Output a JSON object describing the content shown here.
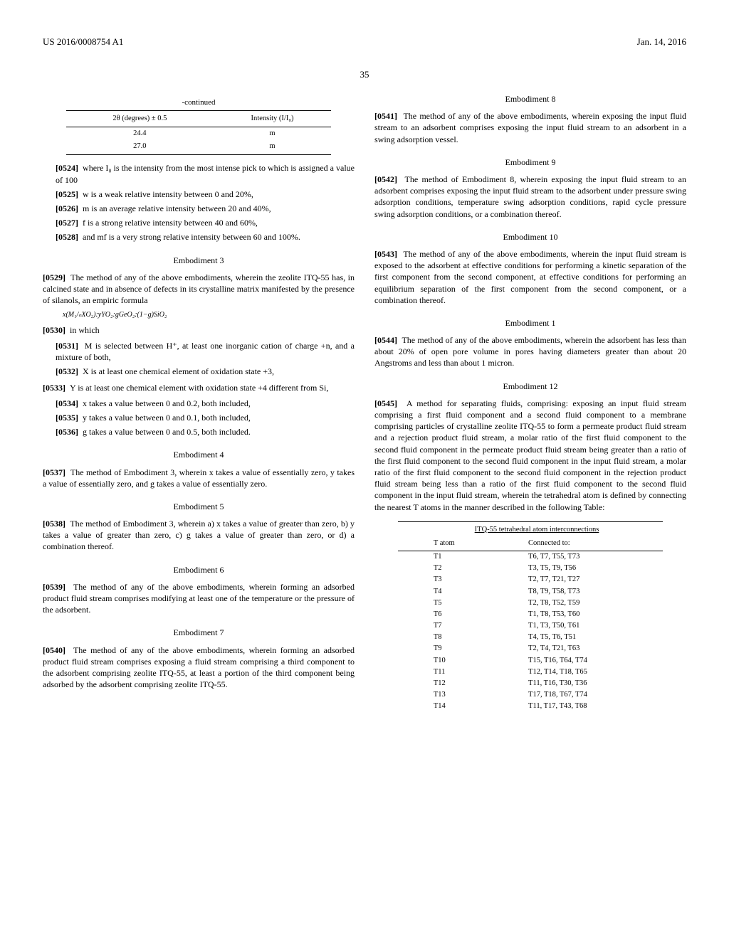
{
  "header": {
    "pub_number": "US 2016/0008754 A1",
    "date": "Jan. 14, 2016"
  },
  "page_number": "35",
  "left": {
    "continued_table": {
      "caption": "-continued",
      "headers": [
        "2θ (degrees) ± 0.5",
        "Intensity (I/I₀)"
      ],
      "rows": [
        [
          "24.4",
          "m"
        ],
        [
          "27.0",
          "m"
        ]
      ]
    },
    "p0524": {
      "num": "[0524]",
      "text": "where I₀ is the intensity from the most intense pick to which is assigned a value of 100"
    },
    "p0525": {
      "num": "[0525]",
      "text": "w is a weak relative intensity between 0 and 20%,"
    },
    "p0526": {
      "num": "[0526]",
      "text": "m is an average relative intensity between 20 and 40%,"
    },
    "p0527": {
      "num": "[0527]",
      "text": "f is a strong relative intensity between 40 and 60%,"
    },
    "p0528": {
      "num": "[0528]",
      "text": "and mf is a very strong relative intensity between 60 and 100%."
    },
    "emb3": "Embodiment 3",
    "p0529": {
      "num": "[0529]",
      "text": "The method of any of the above embodiments, wherein the zeolite ITQ-55 has, in calcined state and in absence of defects in its crystalline matrix manifested by the presence of silanols, an empiric formula"
    },
    "formula": "x(M₁/ₙXO₂):yYO₂:gGeO₂:(1−g)SiO₂",
    "p0530": {
      "num": "[0530]",
      "text": "in which"
    },
    "p0531": {
      "num": "[0531]",
      "text": "M is selected between H⁺, at least one inorganic cation of charge +n, and a mixture of both,"
    },
    "p0532": {
      "num": "[0532]",
      "text": "X is at least one chemical element of oxidation state +3,"
    },
    "p0533": {
      "num": "[0533]",
      "text": "Y is at least one chemical element with oxidation state +4 different from Si,"
    },
    "p0534": {
      "num": "[0534]",
      "text": "x takes a value between 0 and 0.2, both included,"
    },
    "p0535": {
      "num": "[0535]",
      "text": "y takes a value between 0 and 0.1, both included,"
    },
    "p0536": {
      "num": "[0536]",
      "text": "g takes a value between 0 and 0.5, both included."
    },
    "emb4": "Embodiment 4",
    "p0537": {
      "num": "[0537]",
      "text": "The method of Embodiment 3, wherein x takes a value of essentially zero, y takes a value of essentially zero, and g takes a value of essentially zero."
    },
    "emb5": "Embodiment 5",
    "p0538": {
      "num": "[0538]",
      "text": "The method of Embodiment 3, wherein a) x takes a value of greater than zero, b) y takes a value of greater than zero, c) g takes a value of greater than zero, or d) a combination thereof."
    },
    "emb6": "Embodiment 6",
    "p0539": {
      "num": "[0539]",
      "text": "The method of any of the above embodiments, wherein forming an adsorbed product fluid stream comprises modifying at least one of the temperature or the pressure of the adsorbent."
    },
    "emb7": "Embodiment 7",
    "p0540": {
      "num": "[0540]",
      "text": "The method of any of the above embodiments, wherein forming an adsorbed product fluid stream comprises exposing a fluid stream comprising a third component to the adsorbent comprising zeolite ITQ-55, at least a portion of the third component being adsorbed by the adsorbent comprising zeolite ITQ-55."
    }
  },
  "right": {
    "emb8": "Embodiment 8",
    "p0541": {
      "num": "[0541]",
      "text": "The method of any of the above embodiments, wherein exposing the input fluid stream to an adsorbent comprises exposing the input fluid stream to an adsorbent in a swing adsorption vessel."
    },
    "emb9": "Embodiment 9",
    "p0542": {
      "num": "[0542]",
      "text": "The method of Embodiment 8, wherein exposing the input fluid stream to an adsorbent comprises exposing the input fluid stream to the adsorbent under pressure swing adsorption conditions, temperature swing adsorption conditions, rapid cycle pressure swing adsorption conditions, or a combination thereof."
    },
    "emb10": "Embodiment 10",
    "p0543": {
      "num": "[0543]",
      "text": "The method of any of the above embodiments, wherein the input fluid stream is exposed to the adsorbent at effective conditions for performing a kinetic separation of the first component from the second component, at effective conditions for performing an equilibrium separation of the first component from the second component, or a combination thereof."
    },
    "emb1": "Embodiment 1",
    "p0544": {
      "num": "[0544]",
      "text": "The method of any of the above embodiments, wherein the adsorbent has less than about 20% of open pore volume in pores having diameters greater than about 20 Angstroms and less than about 1 micron."
    },
    "emb12": "Embodiment 12",
    "p0545": {
      "num": "[0545]",
      "text": "A method for separating fluids, comprising: exposing an input fluid stream comprising a first fluid component and a second fluid component to a membrane comprising particles of crystalline zeolite ITQ-55 to form a permeate product fluid stream and a rejection product fluid stream, a molar ratio of the first fluid component to the second fluid component in the permeate product fluid stream being greater than a ratio of the first fluid component to the second fluid component in the input fluid stream, a molar ratio of the first fluid component to the second fluid component in the rejection product fluid stream being less than a ratio of the first fluid component to the second fluid component in the input fluid stream, wherein the tetrahedral atom is defined by connecting the nearest T atoms in the manner described in the following Table:"
    },
    "interconnect_table": {
      "title": "ITQ-55 tetrahedral atom interconnections",
      "headers": [
        "T atom",
        "Connected to:"
      ],
      "rows": [
        [
          "T1",
          "T6, T7, T55, T73"
        ],
        [
          "T2",
          "T3, T5, T9, T56"
        ],
        [
          "T3",
          "T2, T7, T21, T27"
        ],
        [
          "T4",
          "T8, T9, T58, T73"
        ],
        [
          "T5",
          "T2, T8, T52, T59"
        ],
        [
          "T6",
          "T1, T8, T53, T60"
        ],
        [
          "T7",
          "T1, T3, T50, T61"
        ],
        [
          "T8",
          "T4, T5, T6, T51"
        ],
        [
          "T9",
          "T2, T4, T21, T63"
        ],
        [
          "T10",
          "T15, T16, T64, T74"
        ],
        [
          "T11",
          "T12, T14, T18, T65"
        ],
        [
          "T12",
          "T11, T16, T30, T36"
        ],
        [
          "T13",
          "T17, T18, T67, T74"
        ],
        [
          "T14",
          "T11, T17, T43, T68"
        ]
      ]
    }
  }
}
